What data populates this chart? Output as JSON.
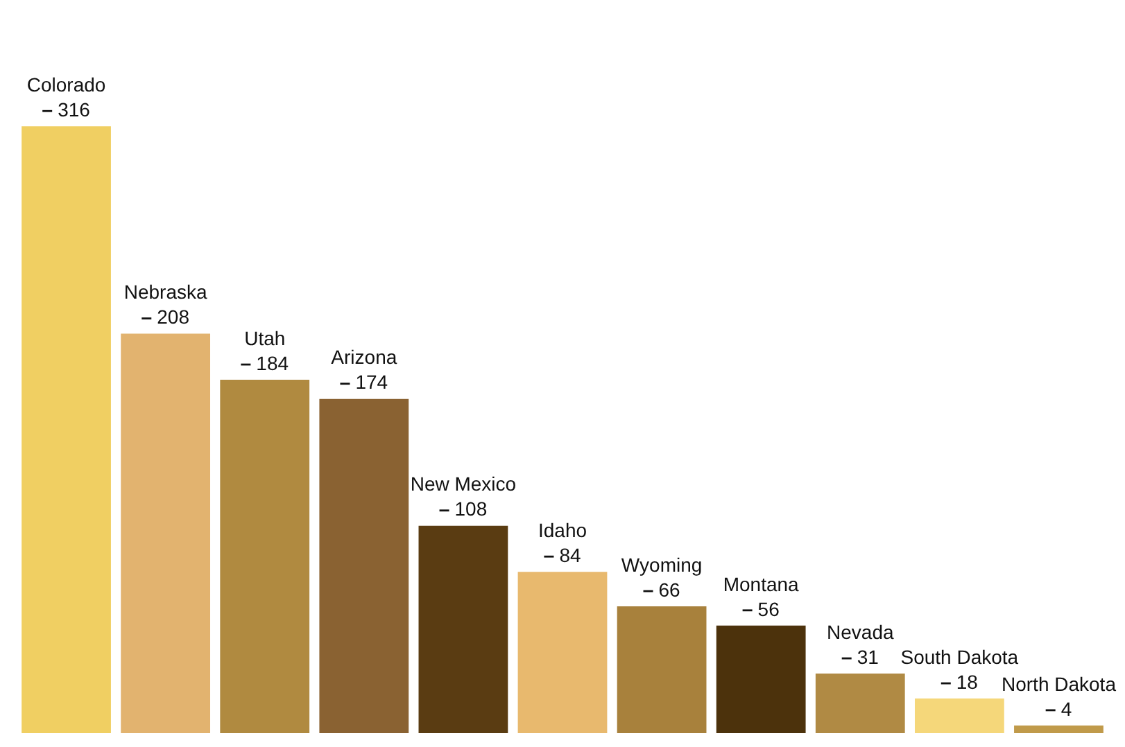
{
  "chart_data": {
    "type": "bar",
    "categories": [
      "Colorado",
      "Nebraska",
      "Utah",
      "Arizona",
      "New Mexico",
      "Idaho",
      "Wyoming",
      "Montana",
      "Nevada",
      "South Dakota",
      "North Dakota"
    ],
    "values": [
      316,
      208,
      184,
      174,
      108,
      84,
      66,
      56,
      31,
      18,
      4
    ],
    "colors": [
      "#f0cf62",
      "#e2b36f",
      "#b08a40",
      "#8a6232",
      "#5a3c12",
      "#e8b96e",
      "#a8813c",
      "#4c320c",
      "#b08a44",
      "#f5d77a",
      "#c09a4a"
    ],
    "data_labels": true,
    "tick_labels": false,
    "grid": false,
    "legend": false
  }
}
